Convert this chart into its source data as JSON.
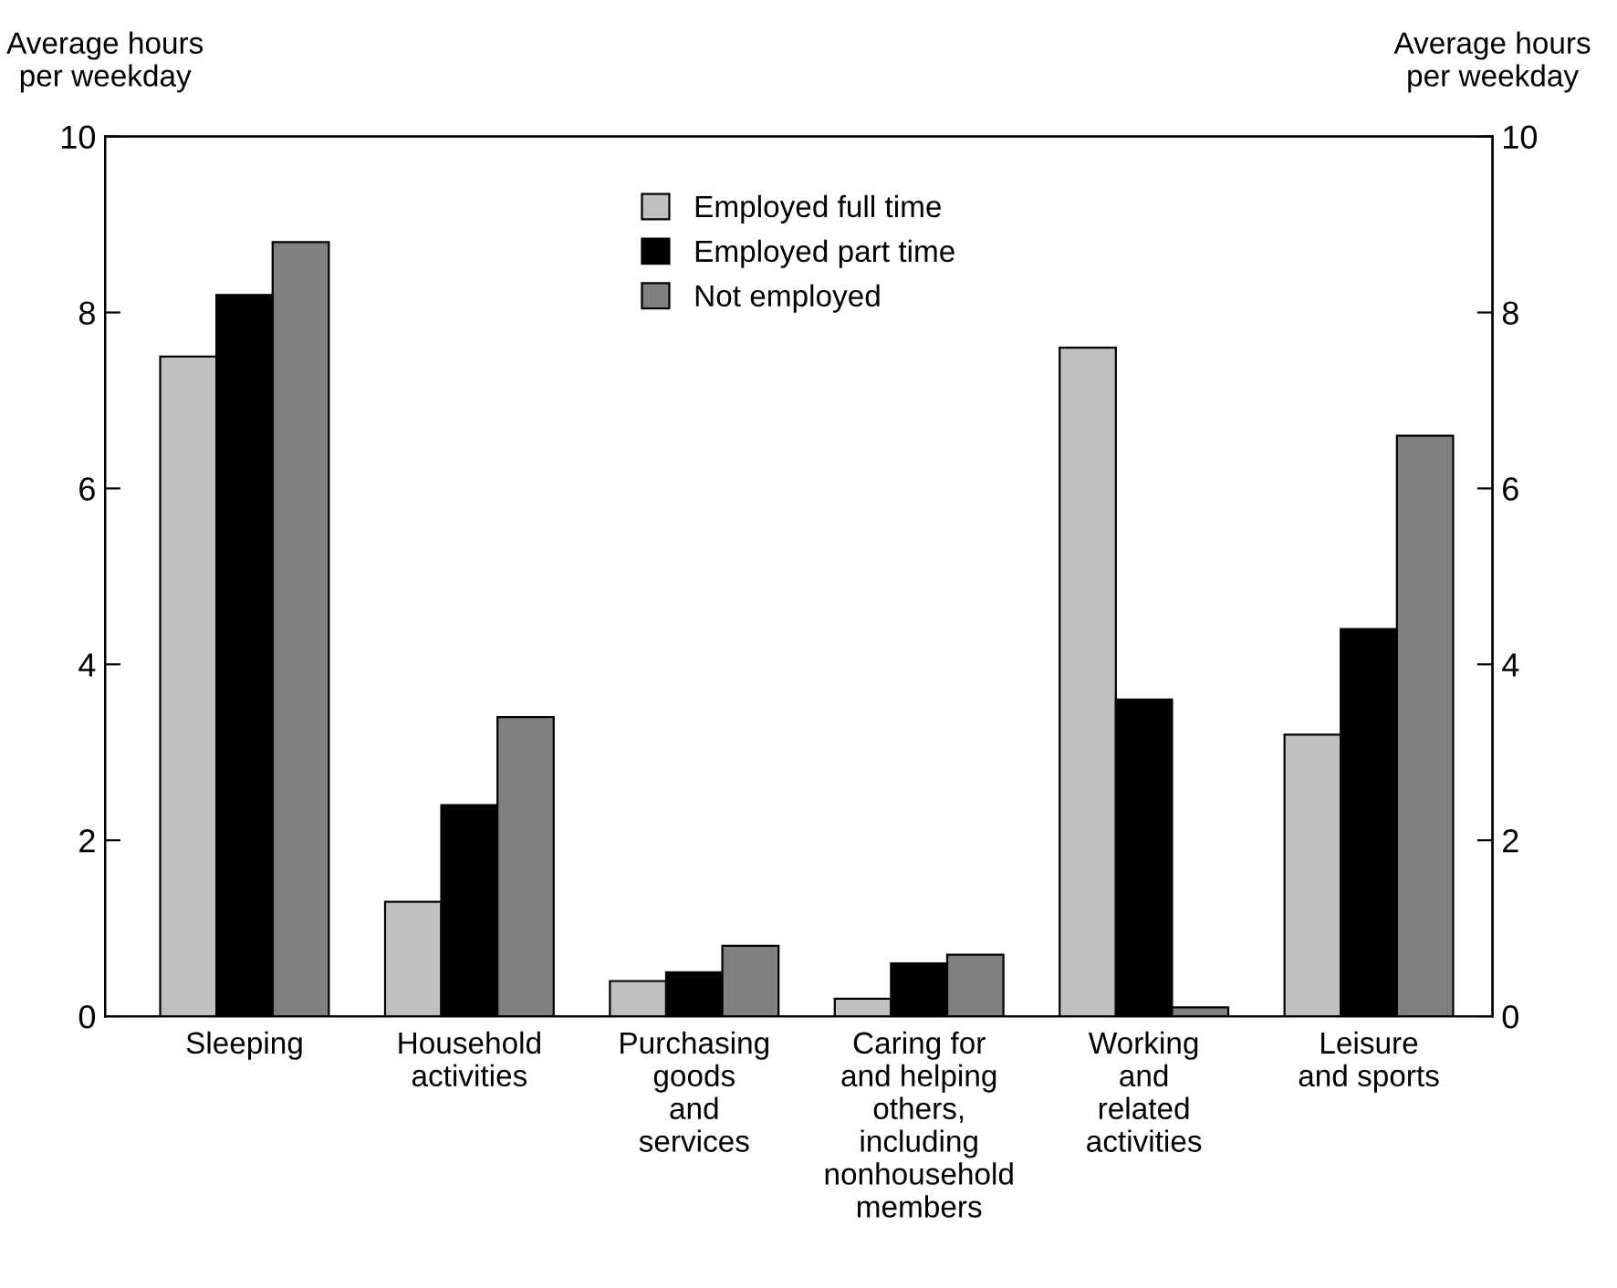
{
  "chart_data": {
    "type": "bar",
    "ylabel": "Average hours\nper weekday",
    "y2label": "Average hours\nper weekday",
    "categories": [
      "Sleeping",
      "Household\nactivities",
      "Purchasing\ngoods\nand\nservices",
      "Caring for\nand helping\nothers,\nincluding\nnonhousehold\nmembers",
      "Working\nand\nrelated\nactivities",
      "Leisure\nand sports"
    ],
    "series": [
      {
        "name": "Employed full time",
        "color": "#c0c0c0",
        "values": [
          7.5,
          1.3,
          0.4,
          0.2,
          7.6,
          3.2
        ]
      },
      {
        "name": "Employed part time",
        "color": "#000000",
        "values": [
          8.2,
          2.4,
          0.5,
          0.6,
          3.6,
          4.4
        ]
      },
      {
        "name": "Not employed",
        "color": "#808080",
        "values": [
          8.8,
          3.4,
          0.8,
          0.7,
          0.1,
          6.6
        ]
      }
    ],
    "ylim": [
      0,
      10
    ],
    "yticks": [
      0,
      2,
      4,
      6,
      8,
      10
    ],
    "y2lim": [
      0,
      10
    ],
    "y2ticks": [
      0,
      2,
      4,
      6,
      8,
      10
    ],
    "grid": false,
    "legend": "top"
  }
}
